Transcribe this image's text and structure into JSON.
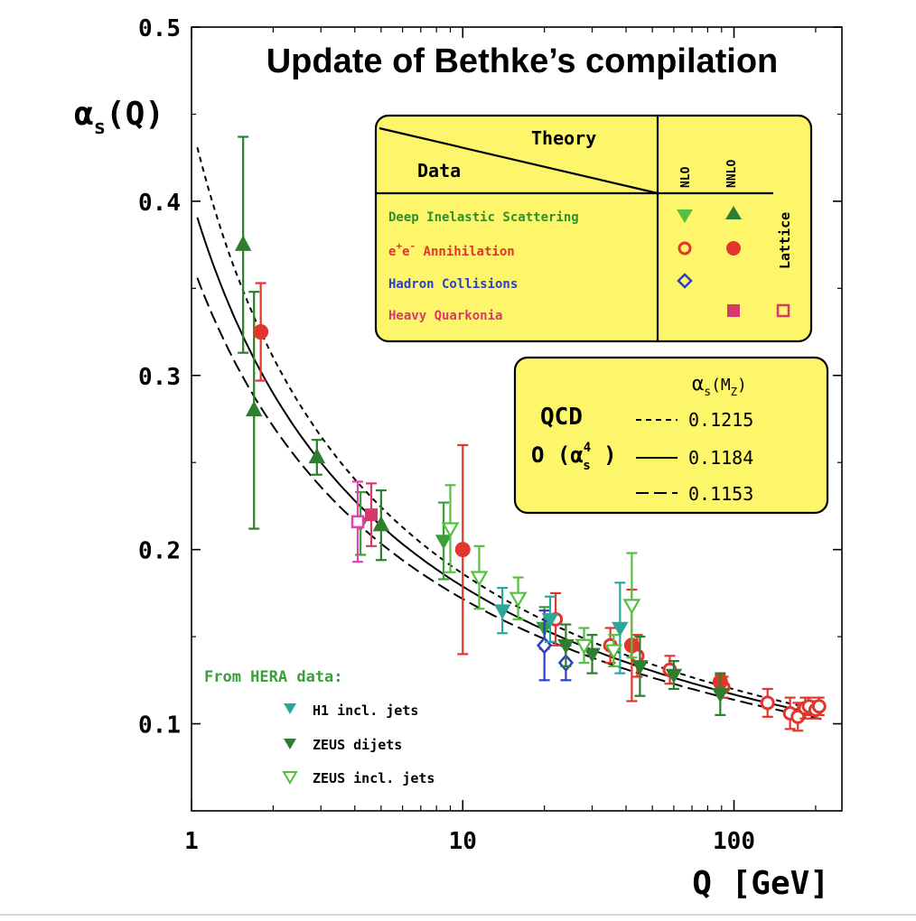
{
  "chart_data": {
    "type": "scatter",
    "title": "Update of Bethke’s compilation",
    "ylabel_main": "α",
    "ylabel_sub": "s",
    "ylabel_tail": "(Q)",
    "xlabel": "Q [GeV]",
    "x_scale": "log",
    "xlim": [
      1,
      250
    ],
    "ylim": [
      0.05,
      0.5
    ],
    "x_ticks": [
      {
        "value": 1,
        "label": "1"
      },
      {
        "value": 10,
        "label": "10"
      },
      {
        "value": 100,
        "label": "100"
      }
    ],
    "y_ticks": [
      {
        "value": 0.1,
        "label": "0.1"
      },
      {
        "value": 0.2,
        "label": "0.2"
      },
      {
        "value": 0.3,
        "label": "0.3"
      },
      {
        "value": 0.4,
        "label": "0.4"
      },
      {
        "value": 0.5,
        "label": "0.5"
      }
    ],
    "curves": [
      {
        "alpha_mz": "0.1215",
        "value": 0.1215,
        "style": "short-dash",
        "pattern": "6 5",
        "label": "0.1215"
      },
      {
        "alpha_mz": "0.1184",
        "value": 0.1184,
        "style": "solid",
        "pattern": "",
        "label": "0.1184"
      },
      {
        "alpha_mz": "0.1153",
        "value": 0.1153,
        "style": "long-dash",
        "pattern": "14 6",
        "label": "0.1153"
      }
    ],
    "series": [
      {
        "name": "Deep Inelastic Scattering NLO",
        "marker": "tri-down",
        "filled": true,
        "color": "#3a9e3a",
        "points": [
          [
            4.2,
            0.215,
            0.018
          ],
          [
            8.5,
            0.205,
            0.022
          ],
          [
            20,
            0.155,
            0.012
          ]
        ]
      },
      {
        "name": "Deep Inelastic Scattering NNLO",
        "marker": "tri-up",
        "filled": true,
        "color": "#2f7d2f",
        "points": [
          [
            1.55,
            0.375,
            0.062
          ],
          [
            1.7,
            0.28,
            0.068
          ],
          [
            2.9,
            0.253,
            0.01
          ],
          [
            5.0,
            0.214,
            0.02
          ]
        ]
      },
      {
        "name": "e+e- Annihilation NLO",
        "marker": "circle",
        "filled": false,
        "color": "#e0362c",
        "points": [
          [
            22,
            0.16,
            0.015
          ],
          [
            35,
            0.145,
            0.01
          ],
          [
            44,
            0.139,
            0.012
          ],
          [
            58,
            0.131,
            0.008
          ],
          [
            91.2,
            0.121,
            0.006
          ],
          [
            133,
            0.112,
            0.008
          ],
          [
            161,
            0.106,
            0.009
          ],
          [
            172,
            0.104,
            0.008
          ],
          [
            183,
            0.109,
            0.006
          ],
          [
            189,
            0.11,
            0.005
          ],
          [
            200,
            0.108,
            0.005
          ],
          [
            206,
            0.11,
            0.005
          ]
        ]
      },
      {
        "name": "e+e- Annihilation NNLO",
        "marker": "circle",
        "filled": true,
        "color": "#e0362c",
        "points": [
          [
            1.8,
            0.325,
            0.028
          ],
          [
            10,
            0.2,
            0.06
          ],
          [
            42,
            0.145,
            0.032
          ],
          [
            89,
            0.124,
            0.004
          ]
        ]
      },
      {
        "name": "Hadron Collisions NLO",
        "marker": "diamond",
        "filled": false,
        "color": "#2b3fc7",
        "points": [
          [
            20,
            0.145,
            0.02
          ],
          [
            24,
            0.135,
            0.01
          ]
        ]
      },
      {
        "name": "Heavy Quarkonia NNLO",
        "marker": "square",
        "filled": true,
        "color": "#d63a6a",
        "points": [
          [
            4.6,
            0.22,
            0.018
          ]
        ]
      },
      {
        "name": "Heavy Quarkonia Lattice",
        "marker": "square",
        "filled": false,
        "color": "#e042b0",
        "points": [
          [
            4.1,
            0.216,
            0.023
          ]
        ]
      },
      {
        "name": "H1 incl. jets",
        "marker": "tri-down",
        "filled": true,
        "color": "#2aa79a",
        "points": [
          [
            14,
            0.165,
            0.013
          ],
          [
            21,
            0.16,
            0.013
          ],
          [
            38,
            0.155,
            0.026
          ]
        ]
      },
      {
        "name": "ZEUS dijets",
        "marker": "tri-down",
        "filled": true,
        "color": "#2f7d2f",
        "points": [
          [
            24,
            0.145,
            0.012
          ],
          [
            30,
            0.14,
            0.011
          ],
          [
            45,
            0.133,
            0.017
          ],
          [
            60,
            0.128,
            0.008
          ],
          [
            89,
            0.117,
            0.012
          ]
        ]
      },
      {
        "name": "ZEUS incl. jets",
        "marker": "tri-down",
        "filled": false,
        "color": "#55c03e",
        "points": [
          [
            9,
            0.212,
            0.025
          ],
          [
            11.5,
            0.184,
            0.018
          ],
          [
            16,
            0.172,
            0.012
          ],
          [
            28,
            0.145,
            0.01
          ],
          [
            36,
            0.142,
            0.009
          ],
          [
            42,
            0.168,
            0.03
          ]
        ]
      }
    ]
  },
  "theory_table": {
    "theory_label": "Theory",
    "data_label": "Data",
    "col_nlo": "NLO",
    "col_nnlo": "NNLO",
    "col_lattice": "Lattice",
    "rows": [
      {
        "label": "Deep Inelastic Scattering",
        "color": "#2f8f2f"
      },
      {
        "label_pre": "e",
        "label_sup1": "+",
        "label_mid": "e",
        "label_sup2": "-",
        "label_post": " Annihilation",
        "color": "#e0362c"
      },
      {
        "label": "Hadron Collisions",
        "color": "#2b3fc7"
      },
      {
        "label": "Heavy Quarkonia",
        "color": "#d63a6a"
      }
    ],
    "background": "#fdf56a"
  },
  "qcd_box": {
    "header_main": "α",
    "header_sub": "s",
    "header_tail": "(M",
    "header_tail_sub": "Z",
    "header_close": ")",
    "qcd_label": "QCD",
    "order_pre": "O (α",
    "order_sup": "4",
    "order_sub": "s",
    "order_post": " )"
  },
  "hera_legend": {
    "title": "From HERA data:",
    "title_color": "#3a9e3a",
    "items": [
      {
        "label": "H1 incl. jets"
      },
      {
        "label": "ZEUS dijets"
      },
      {
        "label": "ZEUS incl. jets"
      }
    ]
  }
}
